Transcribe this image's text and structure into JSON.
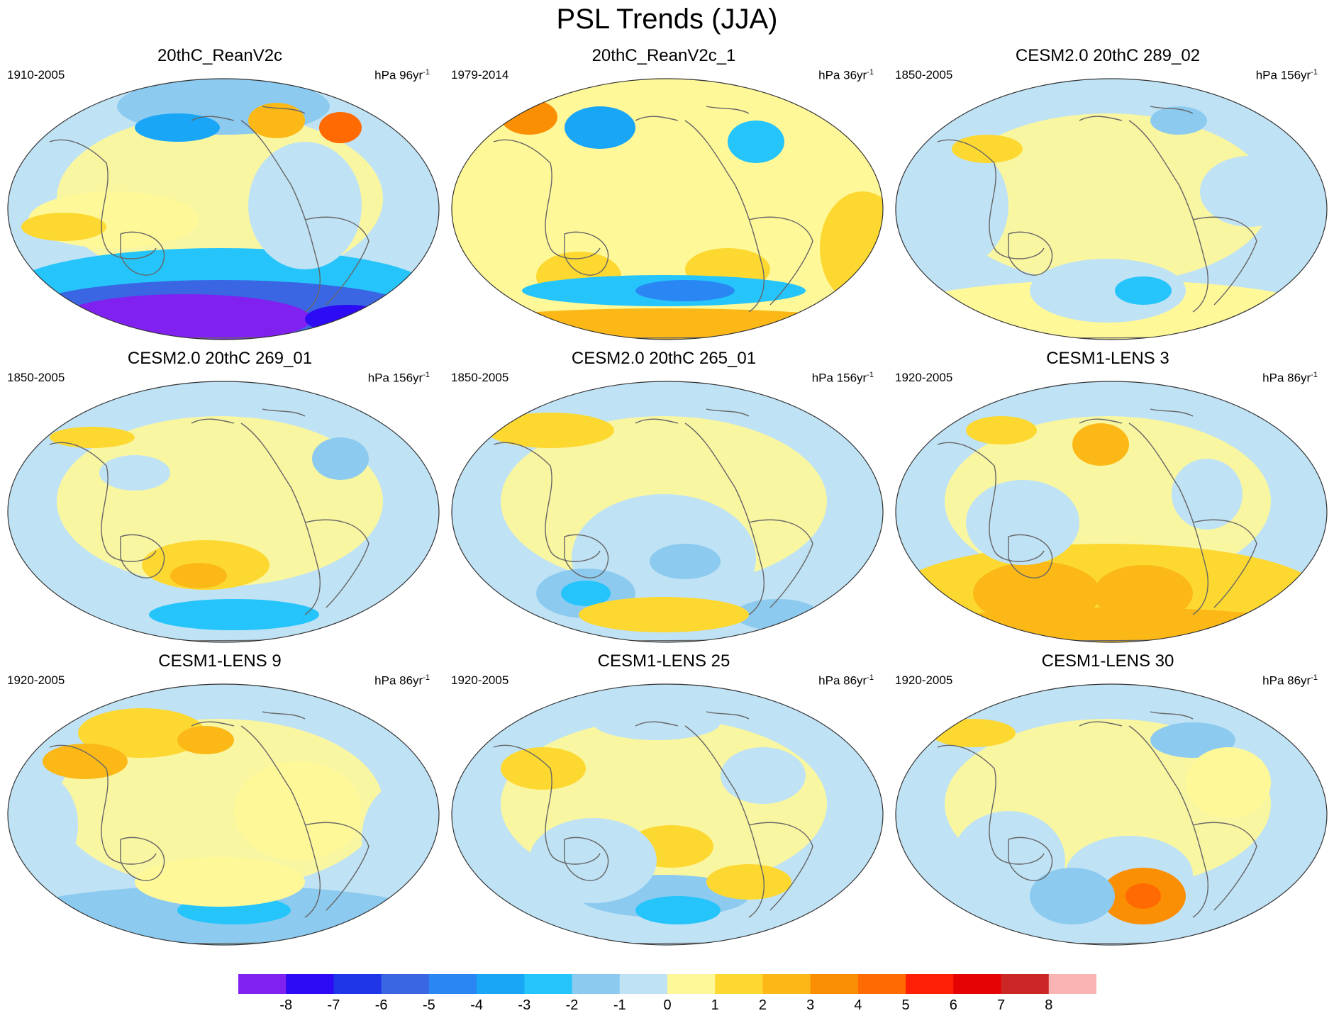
{
  "title": "PSL Trends (JJA)",
  "panels": [
    {
      "title": "20thC_ReanV2c",
      "period": "1910-2005",
      "units_prefix": "hPa",
      "units_value": "96yr",
      "units_exp": "-1",
      "variant": 0
    },
    {
      "title": "20thC_ReanV2c_1",
      "period": "1979-2014",
      "units_prefix": "hPa",
      "units_value": "36yr",
      "units_exp": "-1",
      "variant": 1
    },
    {
      "title": "CESM2.0 20thC 289_02",
      "period": "1850-2005",
      "units_prefix": "hPa",
      "units_value": "156yr",
      "units_exp": "-1",
      "variant": 2
    },
    {
      "title": "CESM2.0 20thC 269_01",
      "period": "1850-2005",
      "units_prefix": "hPa",
      "units_value": "156yr",
      "units_exp": "-1",
      "variant": 3
    },
    {
      "title": "CESM2.0 20thC 265_01",
      "period": "1850-2005",
      "units_prefix": "hPa",
      "units_value": "156yr",
      "units_exp": "-1",
      "variant": 4
    },
    {
      "title": "CESM1-LENS 3",
      "period": "1920-2005",
      "units_prefix": "hPa",
      "units_value": "86yr",
      "units_exp": "-1",
      "variant": 5
    },
    {
      "title": "CESM1-LENS 9",
      "period": "1920-2005",
      "units_prefix": "hPa",
      "units_value": "86yr",
      "units_exp": "-1",
      "variant": 6
    },
    {
      "title": "CESM1-LENS 25",
      "period": "1920-2005",
      "units_prefix": "hPa",
      "units_value": "86yr",
      "units_exp": "-1",
      "variant": 7
    },
    {
      "title": "CESM1-LENS 30",
      "period": "1920-2005",
      "units_prefix": "hPa",
      "units_value": "86yr",
      "units_exp": "-1",
      "variant": 8
    }
  ],
  "colorbar": {
    "colors": [
      "#8021f0",
      "#2e0bf5",
      "#1e35e8",
      "#3a66e3",
      "#2a86f2",
      "#1aa6f7",
      "#25c4fa",
      "#8ccaef",
      "#bfe2f5",
      "#fff899",
      "#fcd831",
      "#fbb817",
      "#fb8f04",
      "#ff6a03",
      "#ff1f06",
      "#e40404",
      "#cc2727",
      "#f9b3b3"
    ],
    "labels": [
      "-8",
      "-7",
      "-6",
      "-5",
      "-4",
      "-3",
      "-2",
      "-1",
      "0",
      "1",
      "2",
      "3",
      "4",
      "5",
      "6",
      "7",
      "8"
    ]
  }
}
